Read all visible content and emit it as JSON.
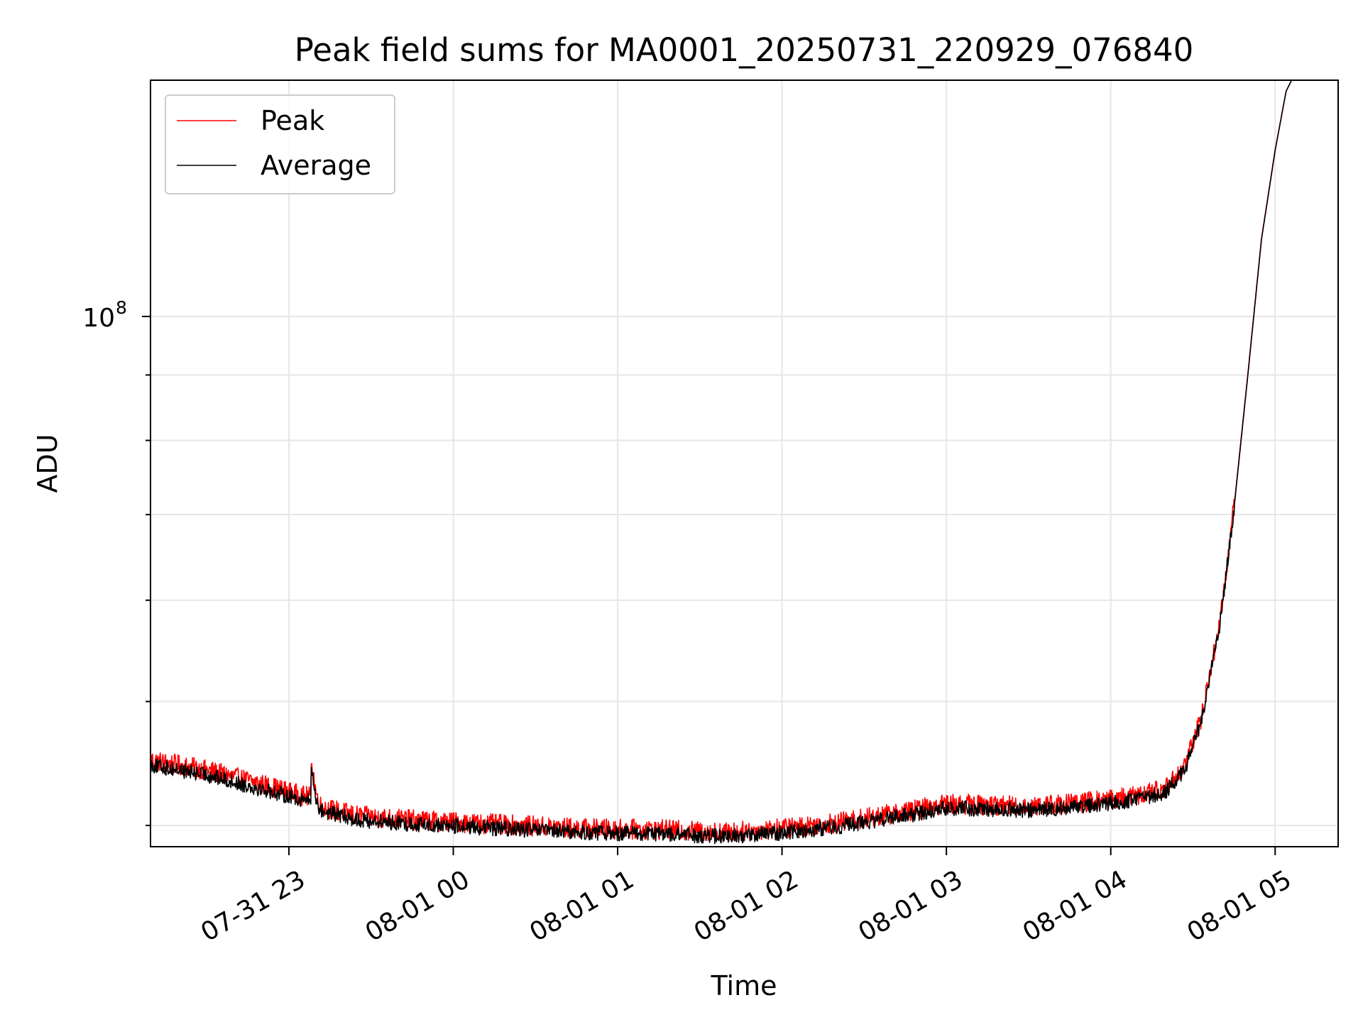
{
  "chart_data": {
    "type": "line",
    "title": "Peak field sums for MA0001_20250731_220929_076840",
    "xlabel": "Time",
    "ylabel": "ADU",
    "y_scale": "log",
    "ylim": [
      38500000,
      153000000
    ],
    "xlim": [
      "2025-07-31 22:09:29",
      "2025-08-01 05:23:00"
    ],
    "grid": true,
    "legend_position": "upper-left",
    "x_ticks": [
      {
        "t": "2025-07-31 23:00",
        "label": "07-31 23"
      },
      {
        "t": "2025-08-01 00:00",
        "label": "08-01 00"
      },
      {
        "t": "2025-08-01 01:00",
        "label": "08-01 01"
      },
      {
        "t": "2025-08-01 02:00",
        "label": "08-01 02"
      },
      {
        "t": "2025-08-01 03:00",
        "label": "08-01 03"
      },
      {
        "t": "2025-08-01 04:00",
        "label": "08-01 04"
      },
      {
        "t": "2025-08-01 05:00",
        "label": "08-01 05"
      }
    ],
    "y_major_ticks": [
      {
        "value": 100000000,
        "label": "10",
        "exponent": "8"
      }
    ],
    "y_minor_ticks": [
      40000000,
      50000000,
      60000000,
      70000000,
      80000000,
      90000000,
      200000000
    ],
    "series": [
      {
        "name": "Peak",
        "color": "#ff0000",
        "noise": 0.008,
        "x": [
          "2025-07-31 22:09:29",
          "2025-07-31 22:30",
          "2025-07-31 22:50",
          "2025-07-31 23:05",
          "2025-07-31 23:08",
          "2025-07-31 23:10",
          "2025-07-31 23:15",
          "2025-07-31 23:25",
          "2025-07-31 23:45",
          "2025-08-01 00:15",
          "2025-08-01 00:45",
          "2025-08-01 01:15",
          "2025-08-01 01:40",
          "2025-08-01 01:55",
          "2025-08-01 02:20",
          "2025-08-01 02:45",
          "2025-08-01 03:00",
          "2025-08-01 03:30",
          "2025-08-01 03:50",
          "2025-08-01 04:10",
          "2025-08-01 04:20",
          "2025-08-01 04:27",
          "2025-08-01 04:33",
          "2025-08-01 04:40",
          "2025-08-01 04:45",
          "2025-08-01 04:50",
          "2025-08-01 04:55",
          "2025-08-01 05:00",
          "2025-08-01 05:04",
          "2025-08-01 05:06"
        ],
        "y": [
          45000000,
          44200000,
          43100000,
          42200000,
          42100000,
          41500000,
          41200000,
          40700000,
          40400000,
          40100000,
          39800000,
          39700000,
          39500000,
          39700000,
          40200000,
          41000000,
          41600000,
          41400000,
          41700000,
          42200000,
          42800000,
          44500000,
          48500000,
          58000000,
          71000000,
          90000000,
          115000000,
          135000000,
          150000000,
          153000000
        ]
      },
      {
        "name": "Average",
        "color": "#000000",
        "noise": 0.006,
        "x": [
          "2025-07-31 22:09:29",
          "2025-07-31 22:30",
          "2025-07-31 22:50",
          "2025-07-31 23:05",
          "2025-07-31 23:08",
          "2025-07-31 23:10",
          "2025-07-31 23:15",
          "2025-07-31 23:25",
          "2025-07-31 23:45",
          "2025-08-01 00:15",
          "2025-08-01 00:45",
          "2025-08-01 01:15",
          "2025-08-01 01:40",
          "2025-08-01 01:55",
          "2025-08-01 02:20",
          "2025-08-01 02:45",
          "2025-08-01 03:00",
          "2025-08-01 03:30",
          "2025-08-01 03:50",
          "2025-08-01 04:10",
          "2025-08-01 04:20",
          "2025-08-01 04:27",
          "2025-08-01 04:33",
          "2025-08-01 04:40",
          "2025-08-01 04:45",
          "2025-08-01 04:50",
          "2025-08-01 04:55",
          "2025-08-01 05:00",
          "2025-08-01 05:04",
          "2025-08-01 05:06"
        ],
        "y": [
          44600000,
          43800000,
          42700000,
          41900000,
          41800000,
          41200000,
          40900000,
          40400000,
          40100000,
          39800000,
          39500000,
          39400000,
          39200000,
          39400000,
          39900000,
          40700000,
          41300000,
          41100000,
          41400000,
          41900000,
          42500000,
          44200000,
          48200000,
          57800000,
          70800000,
          89800000,
          114800000,
          134800000,
          150000000,
          153000000
        ]
      }
    ],
    "annotations": [
      {
        "series": "Peak",
        "t": "2025-07-31 23:08",
        "value": 45700000,
        "kind": "spike"
      },
      {
        "series": "Average",
        "t": "2025-07-31 23:08",
        "value": 44700000,
        "kind": "spike"
      }
    ]
  }
}
